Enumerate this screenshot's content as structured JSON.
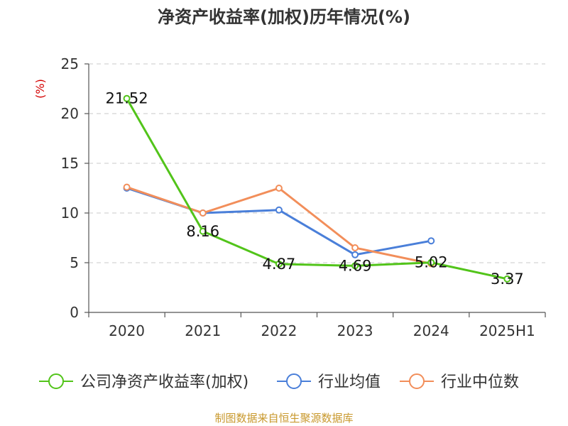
{
  "chart_data": {
    "type": "line",
    "title": "净资产收益率(加权)历年情况(%)",
    "ylabel": "(%)",
    "xlabel": "",
    "categories": [
      "2020",
      "2021",
      "2022",
      "2023",
      "2024",
      "2025H1"
    ],
    "ylim": [
      0,
      25
    ],
    "yticks": [
      0,
      5,
      10,
      15,
      20,
      25
    ],
    "grid": "horizontal dashed",
    "legend_position": "bottom",
    "series": [
      {
        "name": "公司净资产收益率(加权)",
        "color": "#52c41a",
        "values": [
          21.52,
          8.16,
          4.87,
          4.69,
          5.02,
          3.37
        ],
        "data_labels": [
          "21.52",
          "8.16",
          "4.87",
          "4.69",
          "5.02",
          "3.37"
        ]
      },
      {
        "name": "行业均值",
        "color": "#4a7fd9",
        "values": [
          12.5,
          10.0,
          10.3,
          5.8,
          7.2,
          null
        ]
      },
      {
        "name": "行业中位数",
        "color": "#f28e5a",
        "values": [
          12.6,
          10.0,
          12.5,
          6.5,
          4.9,
          null
        ]
      }
    ]
  },
  "footer": {
    "source": "制图数据来自恒生聚源数据库"
  }
}
